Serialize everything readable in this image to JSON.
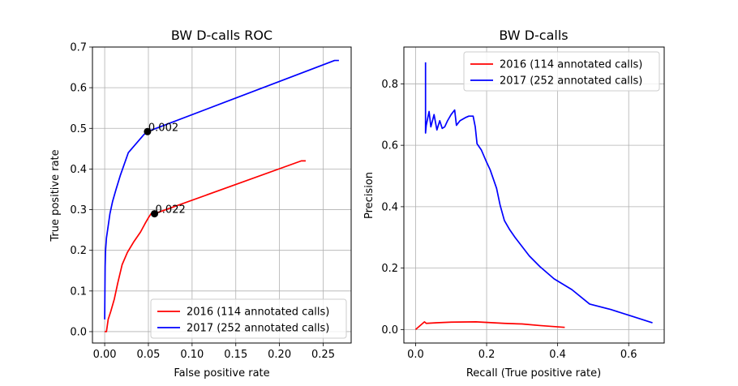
{
  "chart_data": [
    {
      "type": "line",
      "title": "BW D-calls ROC",
      "xlabel": "False positive rate",
      "ylabel": "True positive rate",
      "xlim": [
        -0.014,
        0.282
      ],
      "ylim": [
        -0.028,
        0.7
      ],
      "xticks": [
        "0.00",
        "0.05",
        "0.10",
        "0.15",
        "0.20",
        "0.25"
      ],
      "xtick_values": [
        0,
        0.05,
        0.1,
        0.15,
        0.2,
        0.25
      ],
      "yticks": [
        "0.0",
        "0.1",
        "0.2",
        "0.3",
        "0.4",
        "0.5",
        "0.6",
        "0.7"
      ],
      "ytick_values": [
        0,
        0.1,
        0.2,
        0.3,
        0.4,
        0.5,
        0.6,
        0.7
      ],
      "grid": true,
      "legend_position": "lower-right",
      "series": [
        {
          "name": "2016 (114 annotated calls)",
          "color": "#ff0000",
          "x": [
            0.0,
            0.002,
            0.004,
            0.007,
            0.011,
            0.015,
            0.02,
            0.026,
            0.033,
            0.041,
            0.046,
            0.05,
            0.053,
            0.057,
            0.225,
            0.23
          ],
          "y": [
            0.0,
            0.0,
            0.03,
            0.05,
            0.08,
            0.12,
            0.165,
            0.195,
            0.22,
            0.245,
            0.265,
            0.28,
            0.29,
            0.29,
            0.42,
            0.42
          ]
        },
        {
          "name": "2017 (252 annotated calls)",
          "color": "#0000ff",
          "x": [
            0.0,
            0.0005,
            0.001,
            0.002,
            0.004,
            0.006,
            0.009,
            0.013,
            0.018,
            0.027,
            0.037,
            0.045,
            0.049,
            0.263,
            0.268
          ],
          "y": [
            0.03,
            0.16,
            0.2,
            0.23,
            0.26,
            0.29,
            0.32,
            0.35,
            0.385,
            0.44,
            0.465,
            0.485,
            0.492,
            0.667,
            0.667
          ]
        }
      ],
      "annotations": [
        {
          "text": "0.002",
          "x": 0.049,
          "y": 0.492
        },
        {
          "text": "0.022",
          "x": 0.057,
          "y": 0.29
        }
      ]
    },
    {
      "type": "line",
      "title": "BW D-calls",
      "xlabel": "Recall (True positive rate)",
      "ylabel": "Precision",
      "xlim": [
        -0.033,
        0.7
      ],
      "ylim": [
        -0.044,
        0.92
      ],
      "xticks": [
        "0.0",
        "0.2",
        "0.4",
        "0.6"
      ],
      "xtick_values": [
        0,
        0.2,
        0.4,
        0.6
      ],
      "yticks": [
        "0.0",
        "0.2",
        "0.4",
        "0.6",
        "0.8"
      ],
      "ytick_values": [
        0,
        0.2,
        0.4,
        0.6,
        0.8
      ],
      "grid": true,
      "legend_position": "upper-right",
      "series": [
        {
          "name": "2016 (114 annotated calls)",
          "color": "#ff0000",
          "x": [
            0.0,
            0.02,
            0.025,
            0.03,
            0.06,
            0.1,
            0.17,
            0.25,
            0.3,
            0.35,
            0.42
          ],
          "y": [
            0.0,
            0.02,
            0.025,
            0.02,
            0.022,
            0.024,
            0.025,
            0.02,
            0.018,
            0.013,
            0.007
          ]
        },
        {
          "name": "2017 (252 annotated calls)",
          "color": "#0000ff",
          "x": [
            0.028,
            0.028,
            0.03,
            0.038,
            0.043,
            0.052,
            0.06,
            0.068,
            0.075,
            0.082,
            0.09,
            0.1,
            0.11,
            0.115,
            0.125,
            0.14,
            0.15,
            0.162,
            0.168,
            0.173,
            0.185,
            0.198,
            0.21,
            0.228,
            0.238,
            0.25,
            0.265,
            0.28,
            0.3,
            0.32,
            0.35,
            0.39,
            0.44,
            0.49,
            0.55,
            0.61,
            0.667
          ],
          "y": [
            0.87,
            0.64,
            0.665,
            0.71,
            0.66,
            0.7,
            0.65,
            0.68,
            0.655,
            0.66,
            0.68,
            0.7,
            0.715,
            0.665,
            0.68,
            0.69,
            0.695,
            0.695,
            0.66,
            0.605,
            0.585,
            0.55,
            0.52,
            0.46,
            0.405,
            0.355,
            0.325,
            0.3,
            0.27,
            0.24,
            0.205,
            0.165,
            0.13,
            0.083,
            0.065,
            0.043,
            0.022
          ]
        }
      ]
    }
  ]
}
